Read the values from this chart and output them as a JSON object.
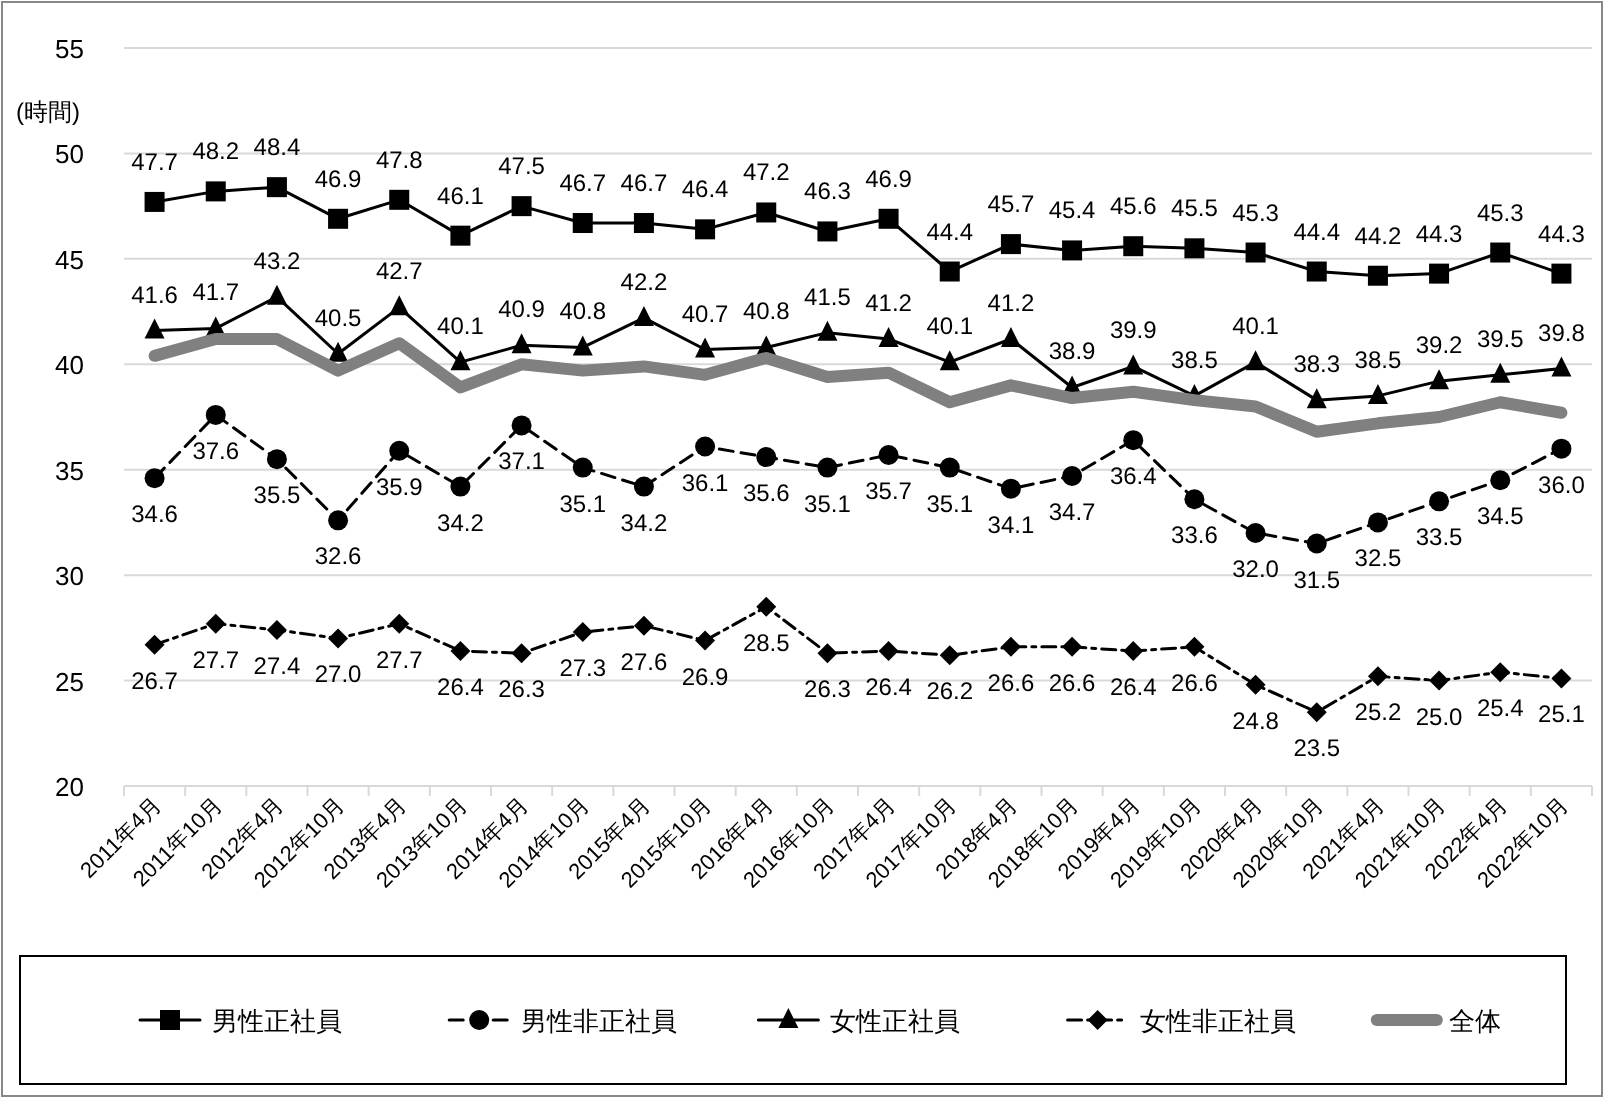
{
  "chart_data": {
    "type": "line",
    "ylabel": "(時間)",
    "categories": [
      "2011年4月",
      "2011年10月",
      "2012年4月",
      "2012年10月",
      "2013年4月",
      "2013年10月",
      "2014年4月",
      "2014年10月",
      "2015年4月",
      "2015年10月",
      "2016年4月",
      "2016年10月",
      "2017年4月",
      "2017年10月",
      "2018年4月",
      "2018年10月",
      "2019年4月",
      "2019年10月",
      "2020年4月",
      "2020年10月",
      "2021年4月",
      "2021年10月",
      "2022年4月",
      "2022年10月"
    ],
    "ylim": [
      20,
      55
    ],
    "yticks": [
      20,
      25,
      30,
      35,
      40,
      45,
      50,
      55
    ],
    "grid": "y",
    "legend": "bottom",
    "series": [
      {
        "name": "男性正社員",
        "color": "#000000",
        "marker": "square",
        "line_style": "solid",
        "values": [
          47.7,
          48.2,
          48.4,
          46.9,
          47.8,
          46.1,
          47.5,
          46.7,
          46.7,
          46.4,
          47.2,
          46.3,
          46.9,
          44.4,
          45.7,
          45.4,
          45.6,
          45.5,
          45.3,
          44.4,
          44.2,
          44.3,
          45.3,
          44.3
        ],
        "value_labels": [
          "47.7",
          "48.2",
          "48.4",
          "46.9",
          "47.8",
          "46.1",
          "47.5",
          "46.7",
          "46.7",
          "46.4",
          "47.2",
          "46.3",
          "46.9",
          "44.4",
          "45.7",
          "45.4",
          "45.6",
          "45.5",
          "45.3",
          "44.4",
          "44.2",
          "44.3",
          "45.3",
          "44.3"
        ]
      },
      {
        "name": "男性非正社員",
        "color": "#000000",
        "marker": "circle",
        "line_style": "dashed",
        "values": [
          34.6,
          37.6,
          35.5,
          32.6,
          35.9,
          34.2,
          37.1,
          35.1,
          34.2,
          36.1,
          35.6,
          35.1,
          35.7,
          35.1,
          34.1,
          34.7,
          36.4,
          33.6,
          32.0,
          31.5,
          32.5,
          33.5,
          34.5,
          36.0
        ],
        "value_labels": [
          "34.6",
          "37.6",
          "35.5",
          "32.6",
          "35.9",
          "34.2",
          "37.1",
          "35.1",
          "34.2",
          "36.1",
          "35.6",
          "35.1",
          "35.7",
          "35.1",
          "34.1",
          "34.7",
          "36.4",
          "33.6",
          "32.0",
          "31.5",
          "32.5",
          "33.5",
          "34.5",
          "36.0"
        ]
      },
      {
        "name": "女性正社員",
        "color": "#000000",
        "marker": "triangle",
        "line_style": "solid",
        "values": [
          41.6,
          41.7,
          43.2,
          40.5,
          42.7,
          40.1,
          40.9,
          40.8,
          42.2,
          40.7,
          40.8,
          41.5,
          41.2,
          40.1,
          41.2,
          38.9,
          39.9,
          38.5,
          40.1,
          38.3,
          38.5,
          39.2,
          39.5,
          39.8
        ],
        "value_labels": [
          "41.6",
          "41.7",
          "43.2",
          "40.5",
          "42.7",
          "40.1",
          "40.9",
          "40.8",
          "42.2",
          "40.7",
          "40.8",
          "41.5",
          "41.2",
          "40.1",
          "41.2",
          "38.9",
          "39.9",
          "38.5",
          "40.1",
          "38.3",
          "38.5",
          "39.2",
          "39.5",
          "39.8"
        ]
      },
      {
        "name": "女性非正社員",
        "color": "#000000",
        "marker": "diamond",
        "line_style": "dashdot",
        "values": [
          26.7,
          27.7,
          27.4,
          27.0,
          27.7,
          26.4,
          26.3,
          27.3,
          27.6,
          26.9,
          28.5,
          26.3,
          26.4,
          26.2,
          26.6,
          26.6,
          26.4,
          26.6,
          24.8,
          23.5,
          25.2,
          25.0,
          25.4,
          25.1
        ],
        "value_labels": [
          "26.7",
          "27.7",
          "27.4",
          "27.0",
          "27.7",
          "26.4",
          "26.3",
          "27.3",
          "27.6",
          "26.9",
          "28.5",
          "26.3",
          "26.4",
          "26.2",
          "26.6",
          "26.6",
          "26.4",
          "26.6",
          "24.8",
          "23.5",
          "25.2",
          "25.0",
          "25.4",
          "25.1"
        ]
      },
      {
        "name": "全体",
        "color": "#808080",
        "marker": "none",
        "line_style": "solid",
        "values": [
          40.4,
          41.2,
          41.2,
          39.7,
          41.0,
          38.9,
          40.0,
          39.7,
          39.9,
          39.5,
          40.3,
          39.4,
          39.6,
          38.2,
          39.0,
          38.4,
          38.7,
          38.3,
          38.0,
          36.8,
          37.2,
          37.5,
          38.2,
          37.7
        ]
      }
    ]
  }
}
